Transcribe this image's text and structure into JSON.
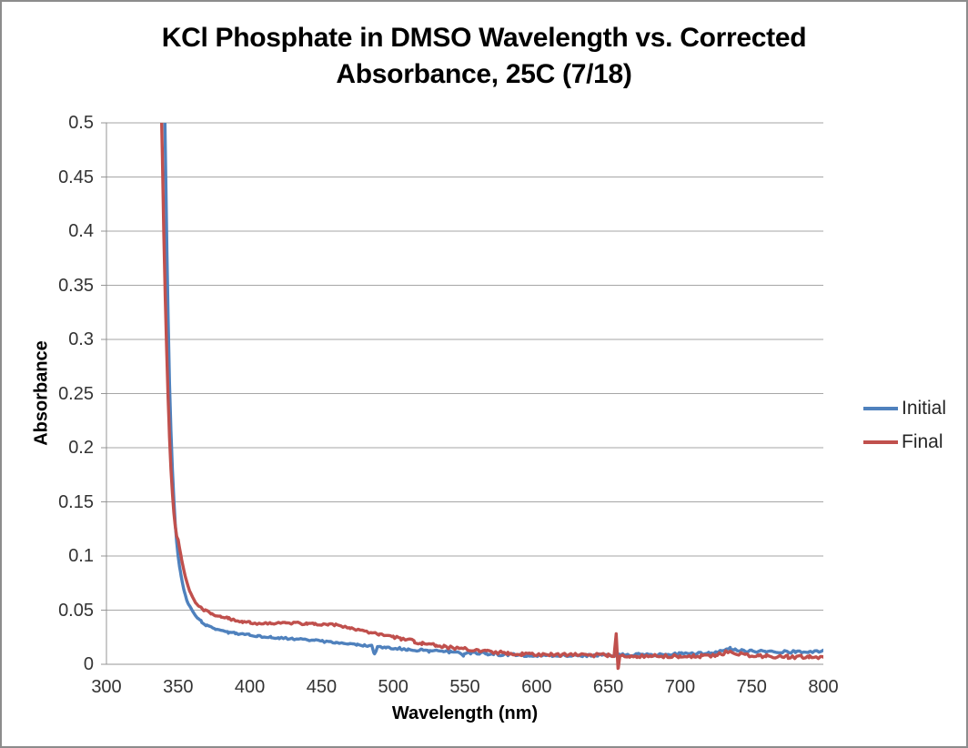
{
  "window": {
    "background_color": "#FFFFFF",
    "frame_color": "#8C8C8C"
  },
  "title": {
    "line1": "KCl Phosphate in DMSO Wavelength vs. Corrected",
    "line2": "Absorbance, 25C (7/18)",
    "full": "KCl Phosphate in DMSO Wavelength vs. Corrected Absorbance, 25C (7/18)"
  },
  "axes": {
    "x": {
      "label": "Wavelength (nm)",
      "tick_labels": [
        "300",
        "350",
        "400",
        "450",
        "500",
        "550",
        "600",
        "650",
        "700",
        "750",
        "800"
      ]
    },
    "y": {
      "label": "Absorbance",
      "tick_labels": [
        "0.5",
        "0.45",
        "0.4",
        "0.35",
        "0.3",
        "0.25",
        "0.2",
        "0.15",
        "0.1",
        "0.05",
        "0"
      ]
    }
  },
  "legend": {
    "items": [
      {
        "label": "Initial",
        "color": "#4F81BD"
      },
      {
        "label": "Final",
        "color": "#C0504D"
      }
    ]
  },
  "colors": {
    "series_initial": "#4F81BD",
    "series_final": "#C0504D",
    "gridline": "#A6A6A6",
    "axis_line": "#969696",
    "tick_text": "#333333",
    "title_text": "#000000"
  },
  "chart_data": {
    "type": "line",
    "title": "KCl Phosphate in DMSO Wavelength vs. Corrected Absorbance, 25C (7/18)",
    "xlabel": "Wavelength (nm)",
    "ylabel": "Absorbance",
    "xlim": [
      300,
      800
    ],
    "ylim": [
      0,
      0.5
    ],
    "x_ticks": [
      300,
      350,
      400,
      450,
      500,
      550,
      600,
      650,
      700,
      750,
      800
    ],
    "y_ticks": [
      0,
      0.05,
      0.1,
      0.15,
      0.2,
      0.25,
      0.3,
      0.35,
      0.4,
      0.45,
      0.5
    ],
    "grid": "horizontal-only",
    "legend_position": "right-middle",
    "notes": "Both curves rise off-scale (clipped at 0.5) below ~342 nm; Final shows a narrow artifact spike near 657 nm; both show a small bump near 735 nm.",
    "series": [
      {
        "name": "Initial",
        "color": "#4F81BD",
        "points": [
          [
            340.8,
            0.5
          ],
          [
            341.5,
            0.44
          ],
          [
            342.2,
            0.38
          ],
          [
            343,
            0.32
          ],
          [
            344,
            0.26
          ],
          [
            345,
            0.215
          ],
          [
            346,
            0.18
          ],
          [
            347,
            0.152
          ],
          [
            348,
            0.13
          ],
          [
            349,
            0.113
          ],
          [
            350,
            0.1
          ],
          [
            351,
            0.09
          ],
          [
            352,
            0.082
          ],
          [
            353,
            0.075
          ],
          [
            354,
            0.069
          ],
          [
            355,
            0.064
          ],
          [
            356,
            0.059
          ],
          [
            357,
            0.056
          ],
          [
            358,
            0.054
          ],
          [
            360,
            0.049
          ],
          [
            362,
            0.045
          ],
          [
            364,
            0.042
          ],
          [
            366,
            0.0395
          ],
          [
            368,
            0.037
          ],
          [
            370,
            0.0355
          ],
          [
            373,
            0.034
          ],
          [
            376,
            0.0325
          ],
          [
            380,
            0.031
          ],
          [
            385,
            0.0295
          ],
          [
            390,
            0.0285
          ],
          [
            395,
            0.0277
          ],
          [
            400,
            0.027
          ],
          [
            405,
            0.0262
          ],
          [
            410,
            0.0255
          ],
          [
            415,
            0.025
          ],
          [
            420,
            0.0245
          ],
          [
            425,
            0.024
          ],
          [
            430,
            0.0237
          ],
          [
            435,
            0.0232
          ],
          [
            440,
            0.0227
          ],
          [
            445,
            0.0221
          ],
          [
            450,
            0.0213
          ],
          [
            455,
            0.0207
          ],
          [
            460,
            0.02
          ],
          [
            465,
            0.0195
          ],
          [
            470,
            0.0188
          ],
          [
            475,
            0.0181
          ],
          [
            480,
            0.0175
          ],
          [
            485,
            0.0169
          ],
          [
            487,
            0.009
          ],
          [
            489,
            0.0163
          ],
          [
            495,
            0.0155
          ],
          [
            500,
            0.0148
          ],
          [
            505,
            0.0143
          ],
          [
            510,
            0.0138
          ],
          [
            515,
            0.0133
          ],
          [
            520,
            0.0128
          ],
          [
            525,
            0.0124
          ],
          [
            530,
            0.012
          ],
          [
            535,
            0.0117
          ],
          [
            540,
            0.0114
          ],
          [
            545,
            0.0111
          ],
          [
            549,
            0.008
          ],
          [
            551,
            0.0108
          ],
          [
            555,
            0.0105
          ],
          [
            560,
            0.0101
          ],
          [
            565,
            0.0098
          ],
          [
            570,
            0.0094
          ],
          [
            575,
            0.0091
          ],
          [
            580,
            0.0088
          ],
          [
            585,
            0.0086
          ],
          [
            590,
            0.0085
          ],
          [
            595,
            0.0085
          ],
          [
            600,
            0.0084
          ],
          [
            610,
            0.0083
          ],
          [
            620,
            0.0082
          ],
          [
            630,
            0.0082
          ],
          [
            640,
            0.0083
          ],
          [
            650,
            0.0085
          ],
          [
            660,
            0.0087
          ],
          [
            670,
            0.0089
          ],
          [
            680,
            0.009
          ],
          [
            690,
            0.0092
          ],
          [
            700,
            0.0095
          ],
          [
            710,
            0.0099
          ],
          [
            720,
            0.0104
          ],
          [
            725,
            0.011
          ],
          [
            730,
            0.0122
          ],
          [
            735,
            0.015
          ],
          [
            738,
            0.0138
          ],
          [
            742,
            0.0128
          ],
          [
            746,
            0.0122
          ],
          [
            750,
            0.012
          ],
          [
            760,
            0.0117
          ],
          [
            770,
            0.0115
          ],
          [
            780,
            0.0114
          ],
          [
            790,
            0.0118
          ],
          [
            800,
            0.012
          ]
        ]
      },
      {
        "name": "Final",
        "color": "#C0504D",
        "points": [
          [
            338.5,
            0.5
          ],
          [
            339.3,
            0.45
          ],
          [
            340,
            0.4
          ],
          [
            341,
            0.34
          ],
          [
            342,
            0.29
          ],
          [
            343,
            0.245
          ],
          [
            344,
            0.21
          ],
          [
            345,
            0.18
          ],
          [
            346,
            0.158
          ],
          [
            347,
            0.14
          ],
          [
            348,
            0.128
          ],
          [
            349,
            0.118
          ],
          [
            350,
            0.115
          ],
          [
            351,
            0.107
          ],
          [
            352,
            0.1
          ],
          [
            353,
            0.093
          ],
          [
            354,
            0.087
          ],
          [
            355,
            0.081
          ],
          [
            356,
            0.076
          ],
          [
            357,
            0.072
          ],
          [
            358,
            0.068
          ],
          [
            360,
            0.062
          ],
          [
            362,
            0.057
          ],
          [
            364,
            0.054
          ],
          [
            366,
            0.052
          ],
          [
            368,
            0.0505
          ],
          [
            370,
            0.049
          ],
          [
            373,
            0.047
          ],
          [
            376,
            0.0455
          ],
          [
            380,
            0.044
          ],
          [
            385,
            0.0425
          ],
          [
            390,
            0.0405
          ],
          [
            395,
            0.0393
          ],
          [
            400,
            0.0385
          ],
          [
            405,
            0.0379
          ],
          [
            410,
            0.0375
          ],
          [
            415,
            0.0374
          ],
          [
            420,
            0.0379
          ],
          [
            425,
            0.0384
          ],
          [
            430,
            0.038
          ],
          [
            435,
            0.0377
          ],
          [
            440,
            0.0374
          ],
          [
            445,
            0.037
          ],
          [
            450,
            0.0368
          ],
          [
            455,
            0.0371
          ],
          [
            460,
            0.0364
          ],
          [
            465,
            0.035
          ],
          [
            470,
            0.0336
          ],
          [
            475,
            0.0321
          ],
          [
            480,
            0.0306
          ],
          [
            485,
            0.0292
          ],
          [
            490,
            0.0279
          ],
          [
            495,
            0.0266
          ],
          [
            500,
            0.0254
          ],
          [
            505,
            0.0241
          ],
          [
            510,
            0.0227
          ],
          [
            515,
            0.0211
          ],
          [
            520,
            0.0196
          ],
          [
            525,
            0.0185
          ],
          [
            530,
            0.0175
          ],
          [
            535,
            0.0165
          ],
          [
            540,
            0.0156
          ],
          [
            545,
            0.0148
          ],
          [
            550,
            0.014
          ],
          [
            555,
            0.0132
          ],
          [
            560,
            0.0125
          ],
          [
            565,
            0.0118
          ],
          [
            570,
            0.0112
          ],
          [
            575,
            0.0106
          ],
          [
            580,
            0.0101
          ],
          [
            585,
            0.0097
          ],
          [
            590,
            0.0094
          ],
          [
            595,
            0.0092
          ],
          [
            600,
            0.009
          ],
          [
            610,
            0.0088
          ],
          [
            620,
            0.0088
          ],
          [
            630,
            0.0087
          ],
          [
            640,
            0.0086
          ],
          [
            650,
            0.0085
          ],
          [
            654,
            0.0085
          ],
          [
            655.5,
            0.028
          ],
          [
            656.8,
            -0.004
          ],
          [
            658,
            0.0085
          ],
          [
            665,
            0.008
          ],
          [
            670,
            0.0078
          ],
          [
            675,
            0.0077
          ],
          [
            680,
            0.0075
          ],
          [
            690,
            0.0076
          ],
          [
            700,
            0.0074
          ],
          [
            705,
            0.0072
          ],
          [
            710,
            0.0074
          ],
          [
            715,
            0.0077
          ],
          [
            720,
            0.0081
          ],
          [
            725,
            0.0086
          ],
          [
            730,
            0.0098
          ],
          [
            735,
            0.013
          ],
          [
            738,
            0.0112
          ],
          [
            742,
            0.0096
          ],
          [
            746,
            0.0088
          ],
          [
            750,
            0.0082
          ],
          [
            755,
            0.0078
          ],
          [
            760,
            0.0075
          ],
          [
            765,
            0.0073
          ],
          [
            770,
            0.0072
          ],
          [
            775,
            0.007
          ],
          [
            780,
            0.0068
          ],
          [
            785,
            0.0068
          ],
          [
            790,
            0.0067
          ],
          [
            795,
            0.0066
          ],
          [
            800,
            0.0065
          ]
        ]
      }
    ]
  }
}
